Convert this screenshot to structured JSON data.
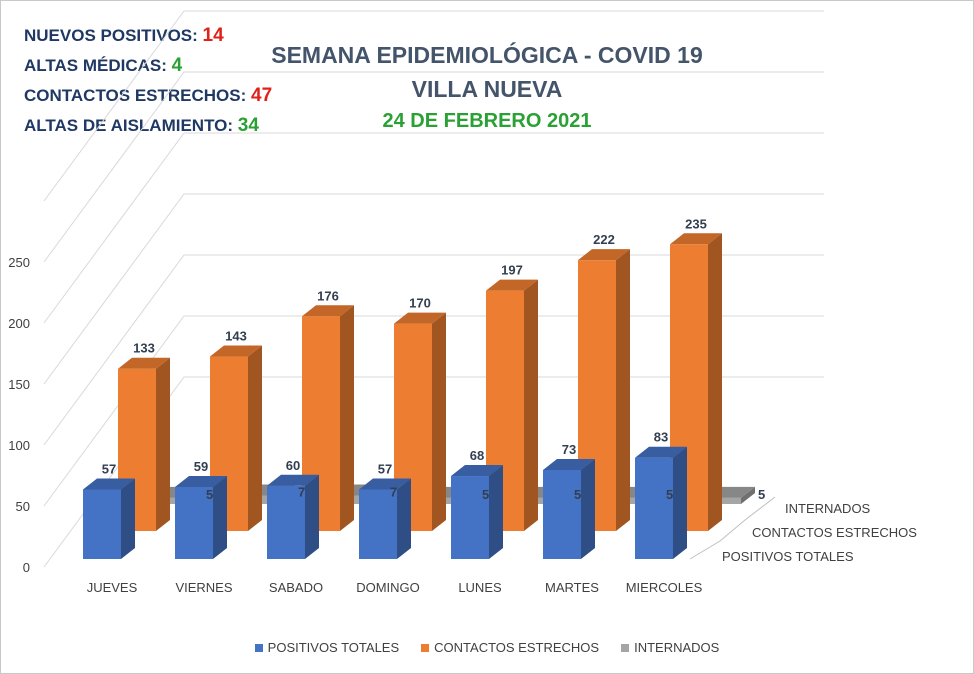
{
  "stats": [
    {
      "label": "NUEVOS POSITIVOS:",
      "value": "14",
      "color": "#e0201b"
    },
    {
      "label": "ALTAS MÉDICAS:",
      "value": "4",
      "color": "#2aa035"
    },
    {
      "label": "CONTACTOS ESTRECHOS:",
      "value": "47",
      "color": "#e0201b"
    },
    {
      "label": "ALTAS DE AISLAMIENTO:",
      "value": "34",
      "color": "#2aa035"
    }
  ],
  "header": {
    "line1": "SEMANA EPIDEMIOLÓGICA - COVID 19",
    "line2": "VILLA NUEVA",
    "date": "24 DE FEBRERO 2021"
  },
  "chart_data": {
    "type": "bar",
    "style": "3d-column-depth",
    "categories": [
      "JUEVES",
      "VIERNES",
      "SABADO",
      "DOMINGO",
      "LUNES",
      "MARTES",
      "MIERCOLES"
    ],
    "series": [
      {
        "name": "POSITIVOS TOTALES",
        "values": [
          57,
          59,
          60,
          57,
          68,
          73,
          83
        ],
        "color": "#4472c4"
      },
      {
        "name": "CONTACTOS ESTRECHOS",
        "values": [
          133,
          143,
          176,
          170,
          197,
          222,
          235
        ],
        "color": "#ed7d31"
      },
      {
        "name": "INTERNADOS",
        "values": [
          5,
          7,
          7,
          5,
          5,
          5,
          5
        ],
        "color": "#a5a5a5"
      }
    ],
    "yticks": [
      0,
      50,
      100,
      150,
      200,
      250
    ],
    "ylim": [
      0,
      300
    ],
    "grid": true,
    "legend_position": "bottom"
  }
}
